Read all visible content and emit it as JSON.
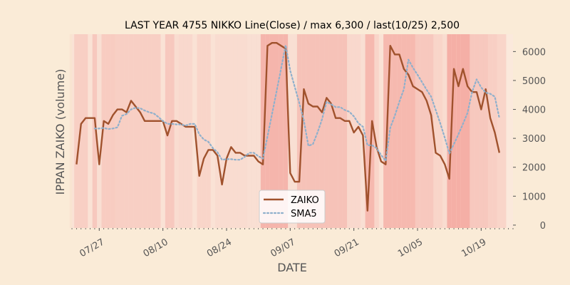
{
  "chart_data": {
    "type": "line",
    "title": "LAST YEAR 4755 NIKKO Line(Close) / max 6,300 / last(10/25) 2,500",
    "xlabel": "DATE",
    "ylabel": "IPPAN ZAIKO (volume)",
    "x_start": "2023-07-22",
    "x_end": "2023-10-25",
    "xlim": [
      "2023-07-21",
      "2023-10-26"
    ],
    "ylim": [
      -100,
      6600
    ],
    "yticks": [
      0,
      1000,
      2000,
      3000,
      4000,
      5000,
      6000
    ],
    "ytick_labels": [
      "0",
      "1000",
      "2000",
      "3000",
      "4000",
      "5000",
      "6000"
    ],
    "xticks": [
      "2023-07-27",
      "2023-08-10",
      "2023-08-24",
      "2023-09-07",
      "2023-09-21",
      "2023-10-05",
      "2023-10-19"
    ],
    "xtick_labels": [
      "07/27",
      "08/10",
      "08/24",
      "09/07",
      "09/21",
      "10/05",
      "10/19"
    ],
    "legend_placement": "lower-center",
    "background_bands": true,
    "colors": {
      "background": "#faebd7",
      "plot_background": "#fbe9dc",
      "zaiko": "#a0522d",
      "sma5": "#8fb0cc",
      "band": "#f4a8a0"
    },
    "series": [
      {
        "name": "ZAIKO",
        "style": "solid",
        "values": [
          2100,
          3500,
          3700,
          3700,
          3700,
          2100,
          3600,
          3500,
          3800,
          4000,
          4000,
          3900,
          4300,
          4100,
          3900,
          3600,
          3600,
          3600,
          3600,
          3600,
          3100,
          3600,
          3600,
          3500,
          3400,
          3400,
          3400,
          1700,
          2300,
          2600,
          2600,
          2400,
          1400,
          2300,
          2700,
          2500,
          2500,
          2400,
          2400,
          2400,
          2200,
          2100,
          6200,
          6300,
          6300,
          6200,
          6100,
          1800,
          1500,
          1500,
          4700,
          4200,
          4100,
          4100,
          3900,
          4400,
          4200,
          3700,
          3700,
          3600,
          3600,
          3200,
          3400,
          3100,
          500,
          3600,
          2700,
          2200,
          2100,
          6200,
          5900,
          5900,
          5400,
          5200,
          4800,
          4700,
          4600,
          4300,
          3800,
          2500,
          2400,
          2100,
          1600,
          5400,
          4800,
          5400,
          4800,
          4600,
          4600,
          4000,
          4700,
          3700,
          3200,
          2500
        ]
      },
      {
        "name": "SMA5",
        "style": "dotted",
        "values": [
          null,
          null,
          null,
          null,
          3340,
          3340,
          3360,
          3320,
          3340,
          3380,
          3780,
          3840,
          4000,
          4060,
          4040,
          3960,
          3900,
          3860,
          3740,
          3600,
          3500,
          3500,
          3480,
          3480,
          3440,
          3500,
          3500,
          3140,
          2960,
          2880,
          2660,
          2520,
          2260,
          2280,
          2280,
          2260,
          2260,
          2360,
          2500,
          2500,
          2380,
          2300,
          3060,
          3840,
          4620,
          5420,
          6220,
          5340,
          4780,
          4220,
          3620,
          2740,
          2800,
          3200,
          3660,
          4260,
          4180,
          4080,
          4080,
          3980,
          3920,
          3760,
          3520,
          3400,
          2760,
          2760,
          2660,
          2420,
          2220,
          3360,
          3780,
          4260,
          4700,
          5720,
          5440,
          5200,
          4940,
          4680,
          4440,
          3980,
          3520,
          3020,
          2480,
          2800,
          3140,
          3500,
          3880,
          4600,
          5040,
          4760,
          4580,
          4540,
          4440,
          3700
        ]
      }
    ]
  }
}
